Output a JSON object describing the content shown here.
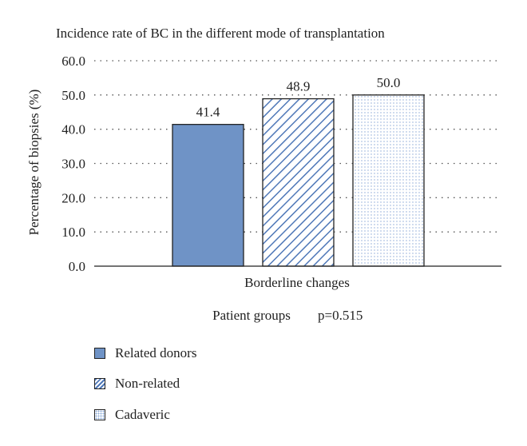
{
  "chart_data": {
    "type": "bar",
    "title": "Incidence rate of BC in the different mode of transplantation",
    "xlabel": "Patient groups",
    "annotation": "p=0.515",
    "ylabel": "Percentage of biopsies (%)",
    "categories": [
      "Borderline changes"
    ],
    "ylim": [
      0,
      60
    ],
    "yticks": [
      "0.0",
      "10.0",
      "20.0",
      "30.0",
      "40.0",
      "50.0",
      "60.0"
    ],
    "grid": "dotted horizontal",
    "legend_position": "bottom-left",
    "series": [
      {
        "name": "Related donors",
        "values": [
          41.4
        ],
        "label": "41.4",
        "fill": "solid",
        "color": "#6f93c6"
      },
      {
        "name": "Non-related",
        "values": [
          48.9
        ],
        "label": "48.9",
        "fill": "diagonal-hatch",
        "color": "#4f78b8"
      },
      {
        "name": "Cadaveric",
        "values": [
          50.0
        ],
        "label": "50.0",
        "fill": "dotted",
        "color": "#8aa8d6"
      }
    ]
  }
}
